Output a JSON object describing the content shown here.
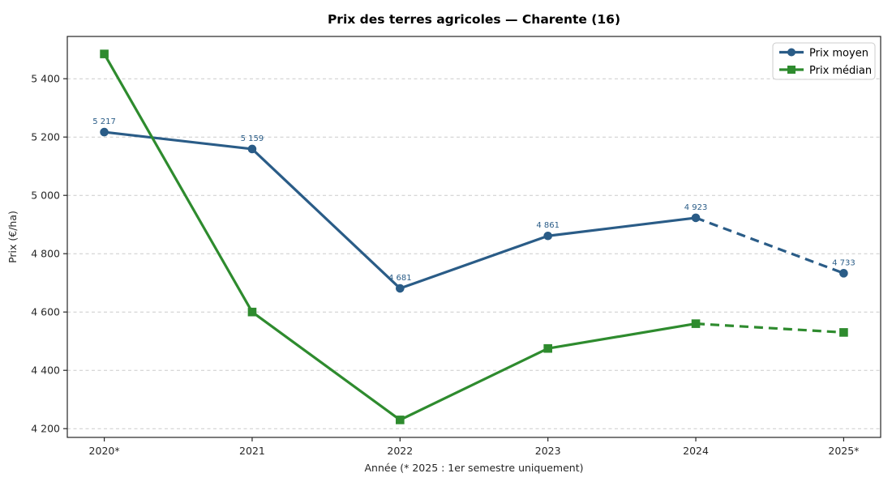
{
  "chart_data": {
    "type": "line",
    "title": "Prix des terres agricoles — Charente (16)",
    "xlabel": "Année (* 2025 : 1er semestre uniquement)",
    "ylabel": "Prix (€/ha)",
    "categories": [
      "2020*",
      "2021",
      "2022",
      "2023",
      "2024",
      "2025*"
    ],
    "ylim": [
      4170,
      5545
    ],
    "yticks": [
      4200,
      4400,
      4600,
      4800,
      5000,
      5200,
      5400
    ],
    "ytick_labels": [
      "4 200",
      "4 400",
      "4 600",
      "4 800",
      "5 000",
      "5 200",
      "5 400"
    ],
    "grid": {
      "horizontal": true,
      "vertical": false,
      "style": "dashed",
      "color": "#cccccc"
    },
    "axes_color": "#262626",
    "legend": {
      "position": "upper-right",
      "background": "#ffffff",
      "border_color": "#cccccc"
    },
    "last_segment_dashed": true,
    "series": [
      {
        "name": "Prix moyen",
        "color": "#2a5c87",
        "marker": "circle",
        "values": [
          5217,
          5159,
          4681,
          4861,
          4923,
          4733
        ],
        "point_labels": [
          "5 217",
          "5 159",
          "4 681",
          "4 861",
          "4 923",
          "4 733"
        ],
        "show_point_labels": true
      },
      {
        "name": "Prix médian",
        "color": "#2e8b2e",
        "marker": "square",
        "values": [
          5485,
          4600,
          4230,
          4475,
          4560,
          4530
        ],
        "point_labels": [],
        "show_point_labels": false
      }
    ]
  }
}
